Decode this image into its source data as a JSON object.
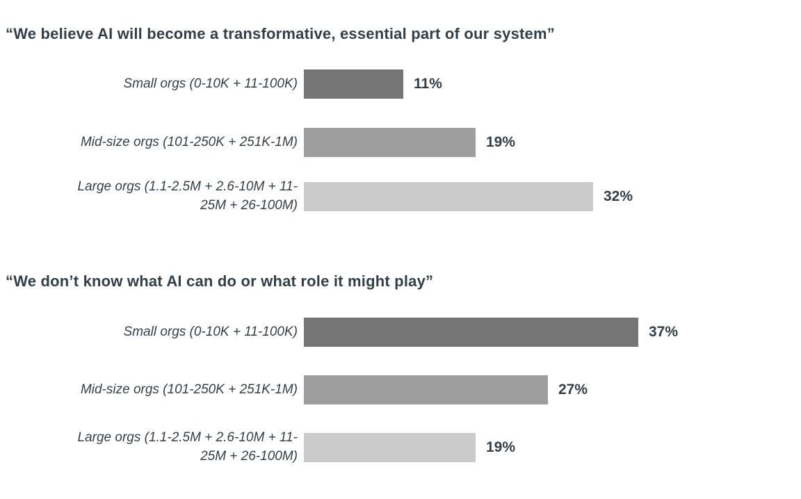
{
  "colors": {
    "text": "#333F48",
    "bar_dark": "#757575",
    "bar_mid": "#9E9E9E",
    "bar_light": "#CBCBCB",
    "background": "#FFFFFF"
  },
  "chart_data": [
    {
      "type": "bar",
      "orientation": "horizontal",
      "title": "“We believe AI will become a transformative, essential part of our system”",
      "categories": [
        "Small orgs (0-10K + 11-100K)",
        "Mid-size orgs (101-250K + 251K-1M)",
        "Large orgs (1.1-2.5M + 2.6-10M + 11-25M + 26-100M)"
      ],
      "display_labels": [
        "Small orgs (0-10K + 11-100K)",
        "Mid-size orgs (101-250K + 251K-1M)",
        "Large orgs (1.1-2.5M + 2.6-10M + 11-\n25M + 26-100M)"
      ],
      "values": [
        11,
        19,
        32
      ],
      "data_labels": [
        "11%",
        "19%",
        "32%"
      ],
      "bar_colors": [
        "#757575",
        "#9E9E9E",
        "#CBCBCB"
      ],
      "xlim": [
        0,
        40
      ],
      "grid": false,
      "legend": false,
      "axis_ticks": "none"
    },
    {
      "type": "bar",
      "orientation": "horizontal",
      "title": "“We don’t know what AI can do or what role it might play”",
      "categories": [
        "Small orgs (0-10K + 11-100K)",
        "Mid-size orgs (101-250K + 251K-1M)",
        "Large orgs (1.1-2.5M + 2.6-10M + 11-25M + 26-100M)"
      ],
      "display_labels": [
        "Small orgs (0-10K + 11-100K)",
        "Mid-size orgs (101-250K + 251K-1M)",
        "Large orgs (1.1-2.5M + 2.6-10M + 11-\n25M + 26-100M)"
      ],
      "values": [
        37,
        27,
        19
      ],
      "data_labels": [
        "37%",
        "27%",
        "19%"
      ],
      "bar_colors": [
        "#757575",
        "#9E9E9E",
        "#CBCBCB"
      ],
      "xlim": [
        0,
        40
      ],
      "grid": false,
      "legend": false,
      "axis_ticks": "none"
    }
  ]
}
